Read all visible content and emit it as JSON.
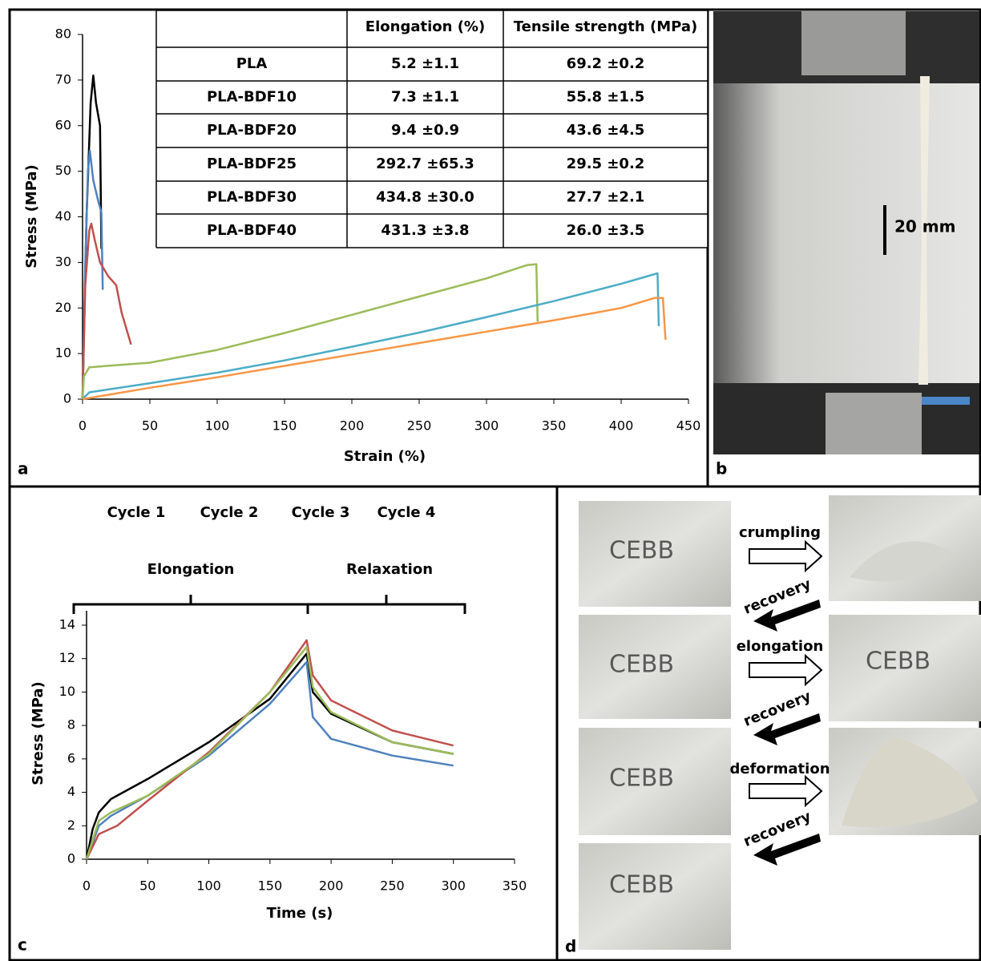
{
  "chart_data": [
    {
      "type": "line",
      "x_label": "Strain (%)",
      "y_label": "Stress (MPa)",
      "xlim": [
        0,
        450
      ],
      "xticks": [
        0,
        50,
        100,
        150,
        200,
        250,
        300,
        350,
        400,
        450
      ],
      "ylim": [
        0,
        80
      ],
      "yticks": [
        0,
        10,
        20,
        30,
        40,
        50,
        60,
        70,
        80
      ],
      "grid": false,
      "series": [
        {
          "name": "PLA",
          "color": "#000000",
          "x": [
            0,
            3,
            6,
            8,
            10,
            13,
            14
          ],
          "values": [
            0,
            40,
            65,
            71,
            65,
            60,
            33
          ]
        },
        {
          "name": "PLA-BDF10",
          "color": "#4f81bd",
          "x": [
            0,
            2,
            4,
            5.4,
            8,
            12,
            14,
            15
          ],
          "values": [
            0,
            30,
            50,
            54.5,
            48,
            43,
            41,
            24
          ]
        },
        {
          "name": "PLA-BDF20",
          "color": "#c0504d",
          "x": [
            0,
            2,
            5,
            6.5,
            9,
            13,
            19,
            25,
            29,
            36
          ],
          "values": [
            0,
            25,
            37,
            38.5,
            35,
            30,
            27,
            25,
            19,
            12
          ]
        },
        {
          "name": "PLA-BDF25",
          "color": "#9bbb59",
          "x": [
            0,
            1,
            5,
            50,
            100,
            150,
            200,
            250,
            300,
            330,
            337,
            338
          ],
          "values": [
            0,
            5,
            7,
            8,
            10.8,
            14.5,
            18.5,
            22.5,
            26.5,
            29.4,
            29.6,
            17
          ]
        },
        {
          "name": "PLA-BDF30",
          "color": "#4bacc6",
          "x": [
            0,
            5,
            50,
            100,
            150,
            200,
            250,
            300,
            350,
            400,
            427,
            428
          ],
          "values": [
            0,
            1.5,
            3.5,
            5.8,
            8.5,
            11.5,
            14.6,
            18,
            21.5,
            25.3,
            27.6,
            16
          ]
        },
        {
          "name": "PLA-BDF40",
          "color": "#f79646",
          "x": [
            0,
            50,
            100,
            150,
            200,
            250,
            300,
            350,
            400,
            425,
            431,
            433
          ],
          "values": [
            0,
            2.5,
            4.8,
            7.3,
            9.8,
            12.3,
            14.8,
            17.3,
            20,
            22.2,
            22.2,
            13
          ]
        }
      ]
    },
    {
      "type": "line",
      "x_label": "Time (s)",
      "y_label": "Stress (MPa)",
      "xlim": [
        0,
        350
      ],
      "xticks": [
        0,
        50,
        100,
        150,
        200,
        250,
        300,
        350
      ],
      "ylim": [
        0,
        14
      ],
      "yticks": [
        0,
        2,
        4,
        6,
        8,
        10,
        12,
        14
      ],
      "grid": false,
      "annotations": [
        "Elongation",
        "Relaxation"
      ],
      "series": [
        {
          "name": "Cycle 1",
          "color": "#000000",
          "x": [
            0,
            5,
            10,
            20,
            50,
            100,
            150,
            180,
            185,
            200,
            250,
            300
          ],
          "values": [
            0,
            1.8,
            2.8,
            3.6,
            4.8,
            7,
            9.6,
            12.3,
            10,
            8.7,
            7,
            6.3
          ]
        },
        {
          "name": "Cycle 2",
          "color": "#4f81bd",
          "x": [
            0,
            10,
            20,
            50,
            100,
            150,
            180,
            185,
            200,
            250,
            300
          ],
          "values": [
            0,
            2,
            2.6,
            3.8,
            6.2,
            9.3,
            11.8,
            8.5,
            7.2,
            6.2,
            5.6
          ]
        },
        {
          "name": "Cycle 3",
          "color": "#c0504d",
          "x": [
            0,
            10,
            25,
            50,
            100,
            150,
            180,
            185,
            200,
            250,
            300
          ],
          "values": [
            0,
            1.5,
            2,
            3.5,
            6.4,
            10,
            13.1,
            11,
            9.5,
            7.7,
            6.8
          ]
        },
        {
          "name": "Cycle 4",
          "color": "#9bbb59",
          "x": [
            0,
            10,
            20,
            50,
            100,
            150,
            180,
            185,
            200,
            250,
            300
          ],
          "values": [
            0,
            2.3,
            2.8,
            3.8,
            6.3,
            10,
            12.7,
            10.3,
            8.8,
            7,
            6.3
          ]
        }
      ]
    }
  ],
  "table": {
    "header": [
      "Elongation (%)",
      "Tensile strength (MPa)"
    ],
    "rows": [
      [
        "5.2 ±1.1",
        "69.2 ±0.2"
      ],
      [
        "7.3 ±1.1",
        "55.8 ±1.5"
      ],
      [
        "9.4 ±0.9",
        "43.6 ±4.5"
      ],
      [
        "292.7 ±65.3",
        "29.5 ±0.2"
      ],
      [
        "434.8 ±30.0",
        "27.7 ±2.1"
      ],
      [
        "431.3 ±3.8",
        "26.0 ±3.5"
      ]
    ]
  },
  "panel_labels": [
    "a",
    "b",
    "c",
    "d"
  ],
  "scale_bar": "20 mm",
  "photo_logo": "CEBB",
  "photo_steps": [
    "crumpling",
    "recovery",
    "elongation",
    "recovery",
    "deformation",
    "recovery"
  ]
}
